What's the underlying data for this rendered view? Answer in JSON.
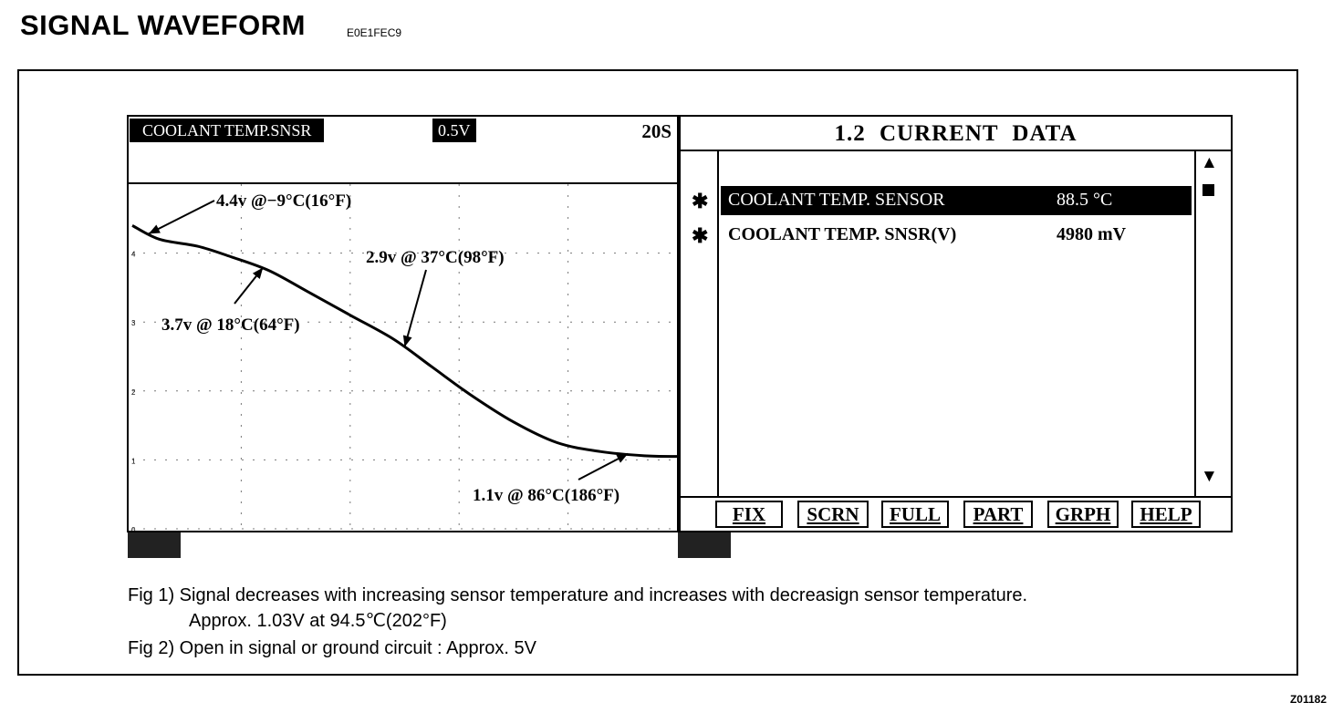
{
  "page": {
    "title": "SIGNAL WAVEFORM",
    "doc_code": "E0E1FEC9",
    "figure_code": "Z01182"
  },
  "scope": {
    "signal_label": "COOLANT TEMP.SNSR",
    "scale_label": "0.5V",
    "timebase_label": "20S",
    "annotations": [
      {
        "text": "4.4v @−9°C(16°F)"
      },
      {
        "text": "3.7v @ 18°C(64°F)"
      },
      {
        "text": "2.9v @ 37°C(98°F)"
      },
      {
        "text": "1.1v @ 86°C(186°F)"
      }
    ],
    "y_ticks": [
      "4",
      "3",
      "2",
      "1",
      "0"
    ]
  },
  "chart_data": {
    "type": "line",
    "title": "COOLANT TEMP.SNSR",
    "ylim": [
      0,
      5
    ],
    "y_ticks": [
      0,
      1,
      2,
      3,
      4
    ],
    "grid": true,
    "series": [
      {
        "name": "COOLANT TEMP.SNSR",
        "x": [
          0,
          5,
          12,
          18,
          25,
          32,
          40,
          48,
          55,
          62,
          70,
          78,
          86,
          94,
          100
        ],
        "y": [
          4.4,
          4.2,
          4.1,
          3.95,
          3.75,
          3.45,
          3.1,
          2.75,
          2.35,
          1.95,
          1.55,
          1.25,
          1.12,
          1.06,
          1.05
        ]
      }
    ]
  },
  "data_panel": {
    "title": "1.2 CURRENT  DATA",
    "rows": [
      {
        "mark": "✱",
        "name": "COOLANT TEMP. SENSOR",
        "value": "88.5 °C"
      },
      {
        "mark": "✱",
        "name": "COOLANT TEMP. SNSR(V)",
        "value": "4980 mV"
      }
    ],
    "scroll_up": "▲",
    "scroll_down": "▼",
    "function_keys": [
      "FIX",
      "SCRN",
      "FULL",
      "PART",
      "GRPH",
      "HELP"
    ]
  },
  "captions": {
    "fig1_line1": "Fig 1) Signal decreases with increasing sensor temperature and increases with decreasign sensor temperature.",
    "fig1_line2": "Approx. 1.03V at 94.5℃(202°F)",
    "fig2": "Fig 2) Open in signal or ground circuit : Approx. 5V"
  }
}
